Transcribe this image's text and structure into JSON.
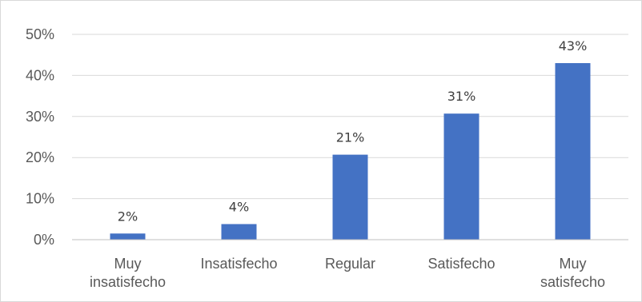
{
  "chart_data": {
    "type": "bar",
    "title": "",
    "xlabel": "",
    "ylabel": "",
    "categories": [
      [
        "Muy",
        "insatisfecho"
      ],
      [
        "Insatisfecho"
      ],
      [
        "Regular"
      ],
      [
        "Satisfecho"
      ],
      [
        "Muy",
        "satisfecho"
      ]
    ],
    "values": [
      1.5,
      3.8,
      20.7,
      30.7,
      43.0
    ],
    "data_labels": [
      "2%",
      "4%",
      "21%",
      "31%",
      "43%"
    ],
    "y_ticks": [
      0,
      10,
      20,
      30,
      40,
      50
    ],
    "y_tick_labels": [
      "0%",
      "10%",
      "20%",
      "30%",
      "40%",
      "50%"
    ],
    "ylim": [
      0,
      50
    ],
    "grid": true,
    "legend": "none",
    "bar_color": "#4472c4",
    "grid_color": "#d9d9d9",
    "axis_color": "#bfbfbf"
  }
}
